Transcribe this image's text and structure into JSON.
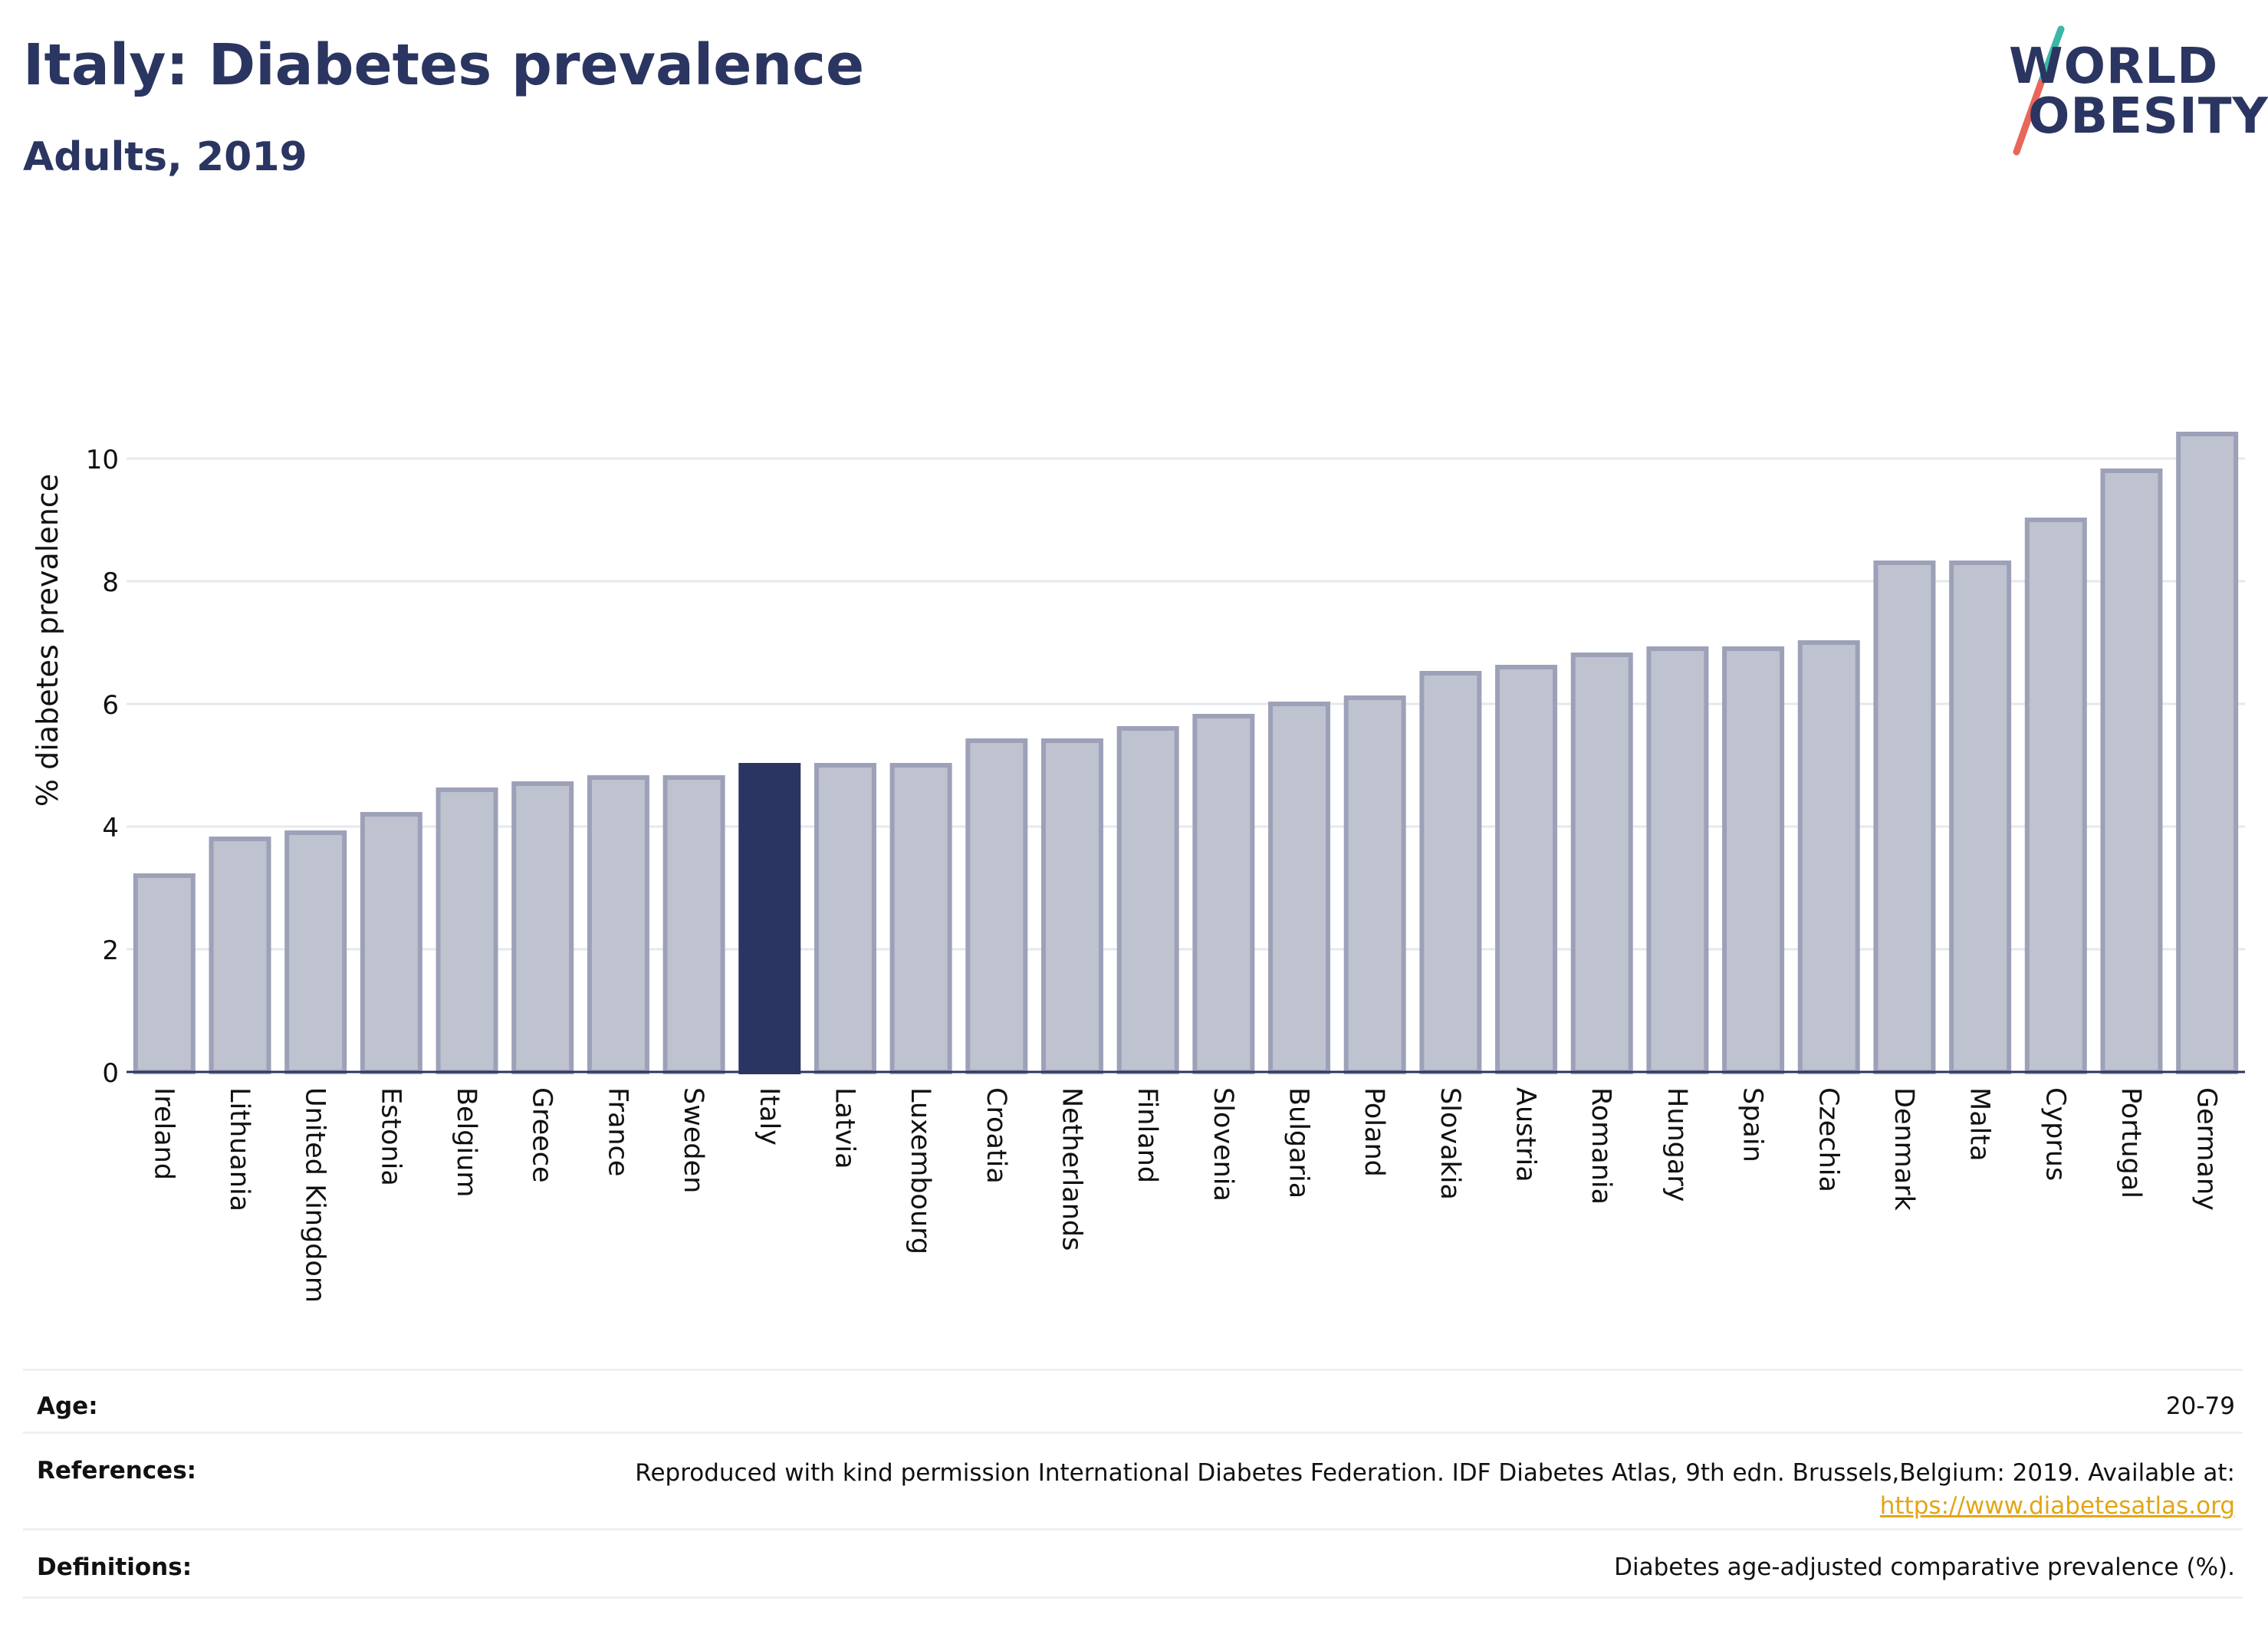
{
  "header": {
    "title": "Italy: Diabetes prevalence",
    "subtitle": "Adults, 2019"
  },
  "logo": {
    "line1": "WORLD",
    "line2": "OBESITY",
    "colors": {
      "text": "#2b3561",
      "slash_top": "#3bb7a8",
      "slash_bottom": "#e8675a"
    }
  },
  "chart_data": {
    "type": "bar",
    "categories": [
      "Ireland",
      "Lithuania",
      "United Kingdom",
      "Estonia",
      "Belgium",
      "Greece",
      "France",
      "Sweden",
      "Italy",
      "Latvia",
      "Luxembourg",
      "Croatia",
      "Netherlands",
      "Finland",
      "Slovenia",
      "Bulgaria",
      "Poland",
      "Slovakia",
      "Austria",
      "Romania",
      "Hungary",
      "Spain",
      "Czechia",
      "Denmark",
      "Malta",
      "Cyprus",
      "Portugal",
      "Germany"
    ],
    "values": [
      3.2,
      3.8,
      3.9,
      4.2,
      4.6,
      4.7,
      4.8,
      4.8,
      5.0,
      5.0,
      5.0,
      5.4,
      5.4,
      5.6,
      5.8,
      6.0,
      6.1,
      6.5,
      6.6,
      6.8,
      6.9,
      6.9,
      7.0,
      8.3,
      8.3,
      9.0,
      9.8,
      10.4
    ],
    "highlight": "Italy",
    "ylabel": "% diabetes prevalence",
    "xlabel": "",
    "ylim": [
      0,
      10.6
    ],
    "yticks": [
      0,
      2,
      4,
      6,
      8,
      10
    ],
    "grid": true,
    "colors": {
      "bar": "#bfc2cf",
      "bar_edge": "#9da1b8",
      "highlight": "#2b3561",
      "grid": "#e6e8ec",
      "axis": "#2b3561"
    }
  },
  "meta": {
    "age_label": "Age:",
    "age_value": "20-79",
    "references_label": "References:",
    "references_text": "Reproduced with kind permission International Diabetes Federation. IDF Diabetes Atlas, 9th edn. Brussels,Belgium: 2019. Available at:",
    "references_link": "https://www.diabetesatlas.org",
    "definitions_label": "Definitions:",
    "definitions_text": "Diabetes age-adjusted comparative prevalence (%)."
  }
}
